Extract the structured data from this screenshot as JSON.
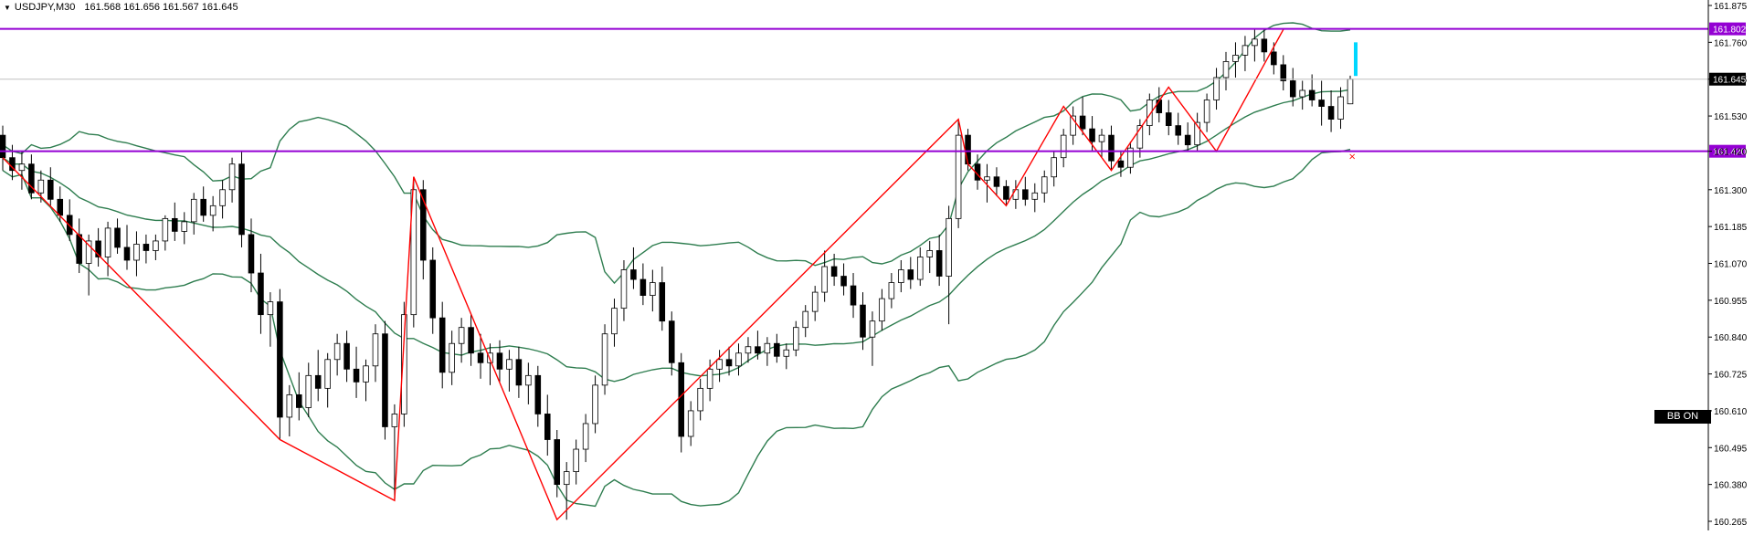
{
  "window": {
    "symbol_timeframe": "USDJPY,M30",
    "ohlc": "161.568 161.656 161.567 161.645",
    "collapse_icon": "triangle-down-icon"
  },
  "badges": {
    "bb": "BB ON"
  },
  "colors": {
    "bull_fill": "#ffffff",
    "bear_fill": "#000000",
    "bollinger": "#2e7d4f",
    "zigzag": "#ff0000",
    "level_line": "#9400d3",
    "level_label_bg": "#9400d3",
    "current_price_bg": "#000000",
    "live_bar": "#00d7ff"
  },
  "chart_data": {
    "type": "candlestick",
    "symbol": "USDJPY",
    "timeframe": "M30",
    "ylim": [
      160.2,
      161.9
    ],
    "y_ticks": [
      "161.875",
      "161.760",
      "161.645",
      "161.530",
      "161.420",
      "161.300",
      "161.185",
      "161.070",
      "160.955",
      "160.840",
      "160.725",
      "160.610",
      "160.495",
      "160.380",
      "160.265"
    ],
    "current_price": "161.645",
    "horizontal_levels": [
      {
        "label": "161.802",
        "value": 161.802
      },
      {
        "label": "161.420",
        "value": 161.42
      }
    ],
    "candles_ohlc": [
      [
        161.47,
        161.5,
        161.36,
        161.4
      ],
      [
        161.4,
        161.44,
        161.33,
        161.36
      ],
      [
        161.36,
        161.42,
        161.3,
        161.38
      ],
      [
        161.38,
        161.41,
        161.27,
        161.29
      ],
      [
        161.29,
        161.36,
        161.26,
        161.33
      ],
      [
        161.33,
        161.37,
        161.25,
        161.27
      ],
      [
        161.27,
        161.31,
        161.2,
        161.22
      ],
      [
        161.22,
        161.27,
        161.14,
        161.16
      ],
      [
        161.16,
        161.21,
        161.04,
        161.07
      ],
      [
        161.07,
        161.16,
        160.97,
        161.14
      ],
      [
        161.14,
        161.18,
        161.06,
        161.09
      ],
      [
        161.09,
        161.2,
        161.03,
        161.18
      ],
      [
        161.18,
        161.21,
        161.1,
        161.12
      ],
      [
        161.12,
        161.19,
        161.05,
        161.08
      ],
      [
        161.08,
        161.17,
        161.03,
        161.13
      ],
      [
        161.13,
        161.16,
        161.07,
        161.11
      ],
      [
        161.11,
        161.16,
        161.08,
        161.14
      ],
      [
        161.14,
        161.22,
        161.11,
        161.21
      ],
      [
        161.21,
        161.26,
        161.14,
        161.17
      ],
      [
        161.17,
        161.23,
        161.13,
        161.2
      ],
      [
        161.2,
        161.29,
        161.16,
        161.27
      ],
      [
        161.27,
        161.31,
        161.2,
        161.22
      ],
      [
        161.22,
        161.28,
        161.17,
        161.25
      ],
      [
        161.25,
        161.33,
        161.21,
        161.3
      ],
      [
        161.3,
        161.4,
        161.26,
        161.38
      ],
      [
        161.38,
        161.42,
        161.12,
        161.16
      ],
      [
        161.16,
        161.21,
        160.98,
        161.04
      ],
      [
        161.04,
        161.1,
        160.85,
        160.91
      ],
      [
        160.91,
        160.98,
        160.81,
        160.95
      ],
      [
        160.95,
        160.99,
        160.52,
        160.59
      ],
      [
        160.59,
        160.69,
        160.53,
        160.66
      ],
      [
        160.66,
        160.73,
        160.58,
        160.62
      ],
      [
        160.62,
        160.76,
        160.59,
        160.72
      ],
      [
        160.72,
        160.8,
        160.64,
        160.68
      ],
      [
        160.68,
        160.79,
        160.62,
        160.77
      ],
      [
        160.77,
        160.85,
        160.72,
        160.82
      ],
      [
        160.82,
        160.86,
        160.7,
        160.74
      ],
      [
        160.74,
        160.81,
        160.65,
        160.7
      ],
      [
        160.7,
        160.77,
        160.64,
        160.75
      ],
      [
        160.75,
        160.88,
        160.7,
        160.85
      ],
      [
        160.85,
        160.89,
        160.52,
        160.56
      ],
      [
        160.56,
        160.63,
        160.33,
        160.6
      ],
      [
        160.6,
        160.95,
        160.56,
        160.91
      ],
      [
        160.91,
        161.34,
        160.87,
        161.3
      ],
      [
        161.3,
        161.33,
        161.02,
        161.08
      ],
      [
        161.08,
        161.12,
        160.85,
        160.9
      ],
      [
        160.9,
        160.95,
        160.68,
        160.73
      ],
      [
        160.73,
        160.86,
        160.69,
        160.82
      ],
      [
        160.82,
        160.9,
        160.76,
        160.87
      ],
      [
        160.87,
        160.91,
        160.75,
        160.79
      ],
      [
        160.79,
        160.85,
        160.71,
        160.76
      ],
      [
        160.76,
        160.82,
        160.69,
        160.79
      ],
      [
        160.79,
        160.83,
        160.7,
        160.74
      ],
      [
        160.74,
        160.8,
        160.67,
        160.77
      ],
      [
        160.77,
        160.81,
        160.65,
        160.69
      ],
      [
        160.69,
        160.76,
        160.63,
        160.72
      ],
      [
        160.72,
        160.75,
        160.56,
        160.6
      ],
      [
        160.6,
        160.66,
        160.47,
        160.52
      ],
      [
        160.52,
        160.55,
        160.34,
        160.38
      ],
      [
        160.38,
        160.45,
        160.27,
        160.42
      ],
      [
        160.42,
        160.52,
        160.38,
        160.49
      ],
      [
        160.49,
        160.6,
        160.45,
        160.57
      ],
      [
        160.57,
        160.72,
        160.54,
        160.69
      ],
      [
        160.69,
        160.88,
        160.66,
        160.85
      ],
      [
        160.85,
        160.96,
        160.81,
        160.93
      ],
      [
        160.93,
        161.08,
        160.89,
        161.05
      ],
      [
        161.05,
        161.12,
        160.99,
        161.02
      ],
      [
        161.02,
        161.07,
        160.94,
        160.97
      ],
      [
        160.97,
        161.05,
        160.92,
        161.01
      ],
      [
        161.01,
        161.06,
        160.86,
        160.89
      ],
      [
        160.89,
        160.92,
        160.72,
        160.76
      ],
      [
        160.76,
        160.79,
        160.48,
        160.53
      ],
      [
        160.53,
        160.64,
        160.5,
        160.61
      ],
      [
        160.61,
        160.71,
        160.58,
        160.68
      ],
      [
        160.68,
        160.77,
        160.64,
        160.74
      ],
      [
        160.74,
        160.8,
        160.7,
        160.77
      ],
      [
        160.77,
        160.81,
        160.72,
        160.75
      ],
      [
        160.75,
        160.82,
        160.72,
        160.79
      ],
      [
        160.79,
        160.84,
        160.76,
        160.81
      ],
      [
        160.81,
        160.86,
        160.77,
        160.79
      ],
      [
        160.79,
        160.84,
        160.75,
        160.82
      ],
      [
        160.82,
        160.85,
        160.76,
        160.78
      ],
      [
        160.78,
        160.82,
        160.74,
        160.8
      ],
      [
        160.8,
        160.89,
        160.78,
        160.87
      ],
      [
        160.87,
        160.94,
        160.84,
        160.92
      ],
      [
        160.92,
        161.0,
        160.89,
        160.98
      ],
      [
        160.98,
        161.11,
        160.95,
        161.06
      ],
      [
        161.06,
        161.1,
        161.0,
        161.03
      ],
      [
        161.03,
        161.07,
        160.97,
        161.0
      ],
      [
        161.0,
        161.04,
        160.9,
        160.94
      ],
      [
        160.94,
        160.98,
        160.8,
        160.84
      ],
      [
        160.84,
        160.92,
        160.75,
        160.89
      ],
      [
        160.89,
        160.99,
        160.86,
        160.96
      ],
      [
        160.96,
        161.04,
        160.93,
        161.01
      ],
      [
        161.01,
        161.08,
        160.98,
        161.05
      ],
      [
        161.05,
        161.09,
        160.99,
        161.02
      ],
      [
        161.02,
        161.12,
        161.0,
        161.09
      ],
      [
        161.09,
        161.14,
        161.04,
        161.11
      ],
      [
        161.11,
        161.16,
        161.0,
        161.03
      ],
      [
        161.03,
        161.25,
        160.88,
        161.21
      ],
      [
        161.21,
        161.52,
        161.18,
        161.47
      ],
      [
        161.47,
        161.49,
        161.36,
        161.38
      ],
      [
        161.38,
        161.41,
        161.3,
        161.33
      ],
      [
        161.33,
        161.38,
        161.26,
        161.34
      ],
      [
        161.34,
        161.37,
        161.28,
        161.31
      ],
      [
        161.31,
        161.33,
        161.25,
        161.27
      ],
      [
        161.27,
        161.33,
        161.24,
        161.3
      ],
      [
        161.3,
        161.34,
        161.25,
        161.27
      ],
      [
        161.27,
        161.32,
        161.23,
        161.29
      ],
      [
        161.29,
        161.36,
        161.26,
        161.34
      ],
      [
        161.34,
        161.42,
        161.31,
        161.4
      ],
      [
        161.4,
        161.49,
        161.37,
        161.47
      ],
      [
        161.47,
        161.56,
        161.44,
        161.53
      ],
      [
        161.53,
        161.59,
        161.47,
        161.49
      ],
      [
        161.49,
        161.53,
        161.42,
        161.45
      ],
      [
        161.45,
        161.49,
        161.4,
        161.47
      ],
      [
        161.47,
        161.5,
        161.36,
        161.39
      ],
      [
        161.39,
        161.42,
        161.34,
        161.37
      ],
      [
        161.37,
        161.45,
        161.35,
        161.43
      ],
      [
        161.43,
        161.52,
        161.4,
        161.5
      ],
      [
        161.5,
        161.6,
        161.47,
        161.58
      ],
      [
        161.58,
        161.62,
        161.51,
        161.54
      ],
      [
        161.54,
        161.58,
        161.47,
        161.5
      ],
      [
        161.5,
        161.54,
        161.44,
        161.47
      ],
      [
        161.47,
        161.51,
        161.42,
        161.44
      ],
      [
        161.44,
        161.54,
        161.42,
        161.51
      ],
      [
        161.51,
        161.6,
        161.48,
        161.58
      ],
      [
        161.58,
        161.68,
        161.55,
        161.65
      ],
      [
        161.65,
        161.73,
        161.61,
        161.7
      ],
      [
        161.7,
        161.76,
        161.65,
        161.72
      ],
      [
        161.72,
        161.78,
        161.67,
        161.75
      ],
      [
        161.75,
        161.8,
        161.7,
        161.77
      ],
      [
        161.77,
        161.8,
        161.7,
        161.73
      ],
      [
        161.73,
        161.76,
        161.66,
        161.69
      ],
      [
        161.69,
        161.72,
        161.61,
        161.64
      ],
      [
        161.64,
        161.68,
        161.56,
        161.59
      ],
      [
        161.59,
        161.64,
        161.55,
        161.61
      ],
      [
        161.61,
        161.66,
        161.56,
        161.58
      ],
      [
        161.58,
        161.64,
        161.5,
        161.56
      ],
      [
        161.56,
        161.61,
        161.48,
        161.52
      ],
      [
        161.52,
        161.62,
        161.49,
        161.59
      ],
      [
        161.568,
        161.656,
        161.567,
        161.645
      ]
    ],
    "live_bar_range": [
      161.655,
      161.76
    ]
  }
}
